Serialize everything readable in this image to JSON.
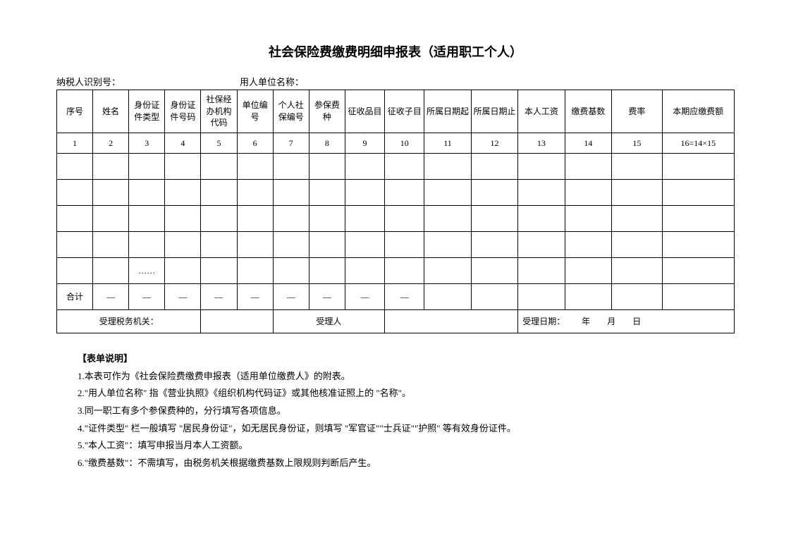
{
  "title": "社会保险费缴费明细申报表（适用职工个人）",
  "topline": {
    "taxpayer_id_label": "纳税人识别号：",
    "employer_name_label": "用人单位名称："
  },
  "columns": [
    "序号",
    "姓名",
    "身份证件类型",
    "身份证件号码",
    "社保经办机构代码",
    "单位编号",
    "个人社保编号",
    "参保费种",
    "征收品目",
    "征收子目",
    "所属日期起",
    "所属日期止",
    "本人工资",
    "缴费基数",
    "费率",
    "本期应缴费额"
  ],
  "col_widths_pct": [
    5,
    5,
    5,
    5,
    5,
    5,
    5,
    5,
    5.5,
    5.5,
    6.5,
    6.5,
    6.5,
    6.5,
    7,
    10
  ],
  "num_row": [
    "1",
    "2",
    "3",
    "4",
    "5",
    "6",
    "7",
    "8",
    "9",
    "10",
    "11",
    "12",
    "13",
    "14",
    "15",
    "16=14×15"
  ],
  "data_rows": [
    [
      "",
      "",
      "",
      "",
      "",
      "",
      "",
      "",
      "",
      "",
      "",
      "",
      "",
      "",
      "",
      ""
    ],
    [
      "",
      "",
      "",
      "",
      "",
      "",
      "",
      "",
      "",
      "",
      "",
      "",
      "",
      "",
      "",
      ""
    ],
    [
      "",
      "",
      "",
      "",
      "",
      "",
      "",
      "",
      "",
      "",
      "",
      "",
      "",
      "",
      "",
      ""
    ],
    [
      "",
      "",
      "",
      "",
      "",
      "",
      "",
      "",
      "",
      "",
      "",
      "",
      "",
      "",
      "",
      ""
    ],
    [
      "",
      "",
      "……",
      "",
      "",
      "",
      "",
      "",
      "",
      "",
      "",
      "",
      "",
      "",
      "",
      ""
    ]
  ],
  "total_row": [
    "合计",
    "—",
    "—",
    "—",
    "—",
    "—",
    "—",
    "—",
    "—",
    "—",
    "",
    "",
    "",
    "",
    "",
    ""
  ],
  "footer": {
    "accept_office_label": "受理税务机关：",
    "accept_person_label": "受理人",
    "accept_date_label": "受理日期：  年  月  日"
  },
  "instructions": {
    "heading": "【表单说明】",
    "items": [
      "1.本表可作为《社会保险费缴费申报表（适用单位缴费人》的附表。",
      "2.\"用人单位名称\" 指《营业执照》《组织机构代码证》或其他核准证照上的 \"名称\"。",
      "3.同一职工有多个参保费种的，分行填写各项信息。",
      "4.\"证件类型\" 栏一般填写 \"居民身份证\"，如无居民身份证，则填写 \"军官证\"\"士兵证\"\"护照\" 等有效身份证件。",
      "5.\"本人工资\"：填写申报当月本人工资额。",
      "6.\"缴费基数\"：不需填写，由税务机关根据缴费基数上限规则判断后产生。"
    ]
  }
}
